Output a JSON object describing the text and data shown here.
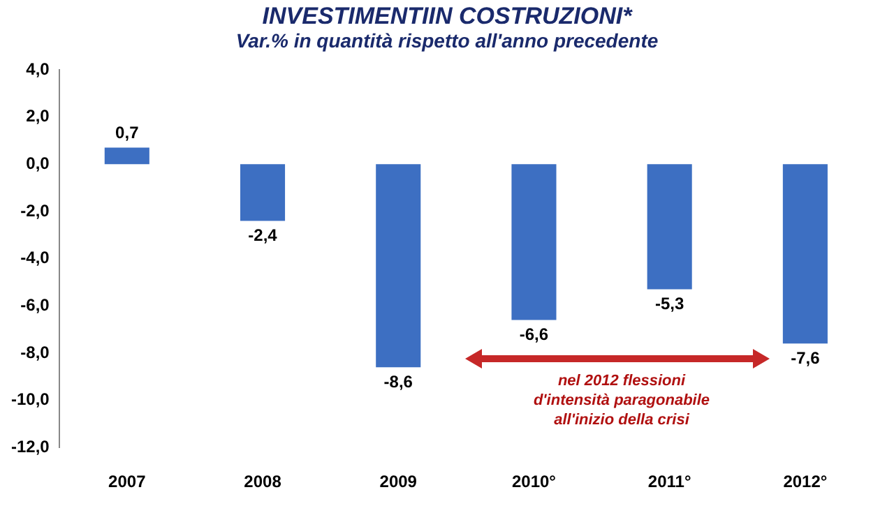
{
  "chart_data": {
    "type": "bar",
    "title": "INVESTIMENTIIN COSTRUZIONI*",
    "subtitle": "Var.% in quantità  rispetto all'anno precedente",
    "categories": [
      "2007",
      "2008",
      "2009",
      "2010°",
      "2011°",
      "2012°"
    ],
    "values": [
      0.7,
      -2.4,
      -8.6,
      -6.6,
      -5.3,
      -7.6
    ],
    "value_labels": [
      "0,7",
      "-2,4",
      "-8,6",
      "-6,6",
      "-5,3",
      "-7,6"
    ],
    "color": "#3d6fc2",
    "ylim": [
      -12,
      4
    ],
    "yticks": [
      {
        "value": 4,
        "label": "4,0"
      },
      {
        "value": 2,
        "label": "2,0"
      },
      {
        "value": 0,
        "label": "0,0"
      },
      {
        "value": -2,
        "label": "-2,0"
      },
      {
        "value": -4,
        "label": "-4,0"
      },
      {
        "value": -6,
        "label": "-6,0"
      },
      {
        "value": -8,
        "label": "-8,0"
      },
      {
        "value": -10,
        "label": "-10,0"
      },
      {
        "value": -12,
        "label": "-12,0"
      }
    ],
    "grid": false,
    "legend": false,
    "annotations": [
      "nel 2012 flessioni\nd'intensità paragonabile\nall'inizio della crisi"
    ]
  }
}
